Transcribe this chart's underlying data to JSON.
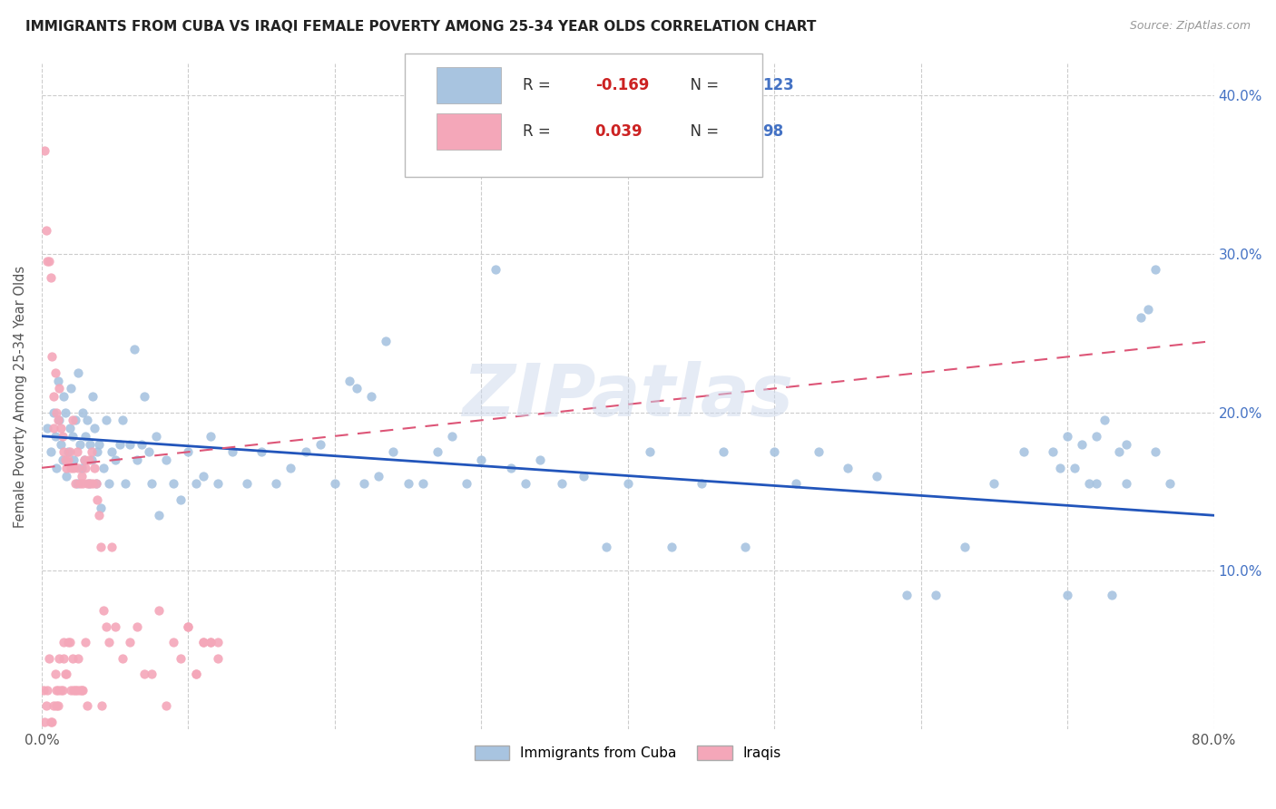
{
  "title": "IMMIGRANTS FROM CUBA VS IRAQI FEMALE POVERTY AMONG 25-34 YEAR OLDS CORRELATION CHART",
  "source": "Source: ZipAtlas.com",
  "ylabel": "Female Poverty Among 25-34 Year Olds",
  "xlim": [
    0.0,
    0.8
  ],
  "ylim": [
    0.0,
    0.42
  ],
  "xtick_positions": [
    0.0,
    0.1,
    0.2,
    0.3,
    0.4,
    0.5,
    0.6,
    0.7,
    0.8
  ],
  "xticklabels": [
    "0.0%",
    "",
    "",
    "",
    "",
    "",
    "",
    "",
    "80.0%"
  ],
  "ytick_positions": [
    0.1,
    0.2,
    0.3,
    0.4
  ],
  "yticklabels_right": [
    "10.0%",
    "20.0%",
    "30.0%",
    "40.0%"
  ],
  "cuba_color": "#a8c4e0",
  "iraq_color": "#f4a7b9",
  "cuba_line_color": "#2255bb",
  "iraq_line_color": "#dd5577",
  "R_cuba": -0.169,
  "N_cuba": 123,
  "R_iraq": 0.039,
  "N_iraq": 98,
  "watermark": "ZIPatlas",
  "background_color": "#ffffff",
  "cuba_trend": [
    0.185,
    0.135
  ],
  "iraq_trend": [
    0.165,
    0.245
  ],
  "cuba_scatter_x": [
    0.004,
    0.006,
    0.008,
    0.009,
    0.01,
    0.011,
    0.012,
    0.013,
    0.014,
    0.015,
    0.016,
    0.017,
    0.018,
    0.019,
    0.02,
    0.021,
    0.022,
    0.023,
    0.024,
    0.025,
    0.026,
    0.027,
    0.028,
    0.029,
    0.03,
    0.031,
    0.032,
    0.033,
    0.034,
    0.035,
    0.036,
    0.037,
    0.038,
    0.039,
    0.04,
    0.042,
    0.044,
    0.046,
    0.048,
    0.05,
    0.053,
    0.055,
    0.057,
    0.06,
    0.063,
    0.065,
    0.068,
    0.07,
    0.073,
    0.075,
    0.078,
    0.08,
    0.085,
    0.09,
    0.095,
    0.1,
    0.105,
    0.11,
    0.115,
    0.12,
    0.13,
    0.14,
    0.15,
    0.16,
    0.17,
    0.18,
    0.19,
    0.2,
    0.21,
    0.215,
    0.22,
    0.225,
    0.23,
    0.235,
    0.24,
    0.25,
    0.26,
    0.27,
    0.28,
    0.29,
    0.3,
    0.31,
    0.32,
    0.33,
    0.34,
    0.355,
    0.37,
    0.385,
    0.4,
    0.415,
    0.43,
    0.45,
    0.465,
    0.48,
    0.5,
    0.515,
    0.53,
    0.55,
    0.57,
    0.59,
    0.61,
    0.63,
    0.65,
    0.67,
    0.7,
    0.72,
    0.74,
    0.755,
    0.76,
    0.77,
    0.76,
    0.75,
    0.74,
    0.735,
    0.73,
    0.725,
    0.72,
    0.715,
    0.71,
    0.705,
    0.7,
    0.695,
    0.69
  ],
  "cuba_scatter_y": [
    0.19,
    0.175,
    0.2,
    0.185,
    0.165,
    0.22,
    0.195,
    0.18,
    0.17,
    0.21,
    0.2,
    0.16,
    0.175,
    0.19,
    0.215,
    0.185,
    0.17,
    0.195,
    0.155,
    0.225,
    0.18,
    0.165,
    0.2,
    0.17,
    0.185,
    0.195,
    0.155,
    0.18,
    0.17,
    0.21,
    0.19,
    0.155,
    0.175,
    0.18,
    0.14,
    0.165,
    0.195,
    0.155,
    0.175,
    0.17,
    0.18,
    0.195,
    0.155,
    0.18,
    0.24,
    0.17,
    0.18,
    0.21,
    0.175,
    0.155,
    0.185,
    0.135,
    0.17,
    0.155,
    0.145,
    0.175,
    0.155,
    0.16,
    0.185,
    0.155,
    0.175,
    0.155,
    0.175,
    0.155,
    0.165,
    0.175,
    0.18,
    0.155,
    0.22,
    0.215,
    0.155,
    0.21,
    0.16,
    0.245,
    0.175,
    0.155,
    0.155,
    0.175,
    0.185,
    0.155,
    0.17,
    0.29,
    0.165,
    0.155,
    0.17,
    0.155,
    0.16,
    0.115,
    0.155,
    0.175,
    0.115,
    0.155,
    0.175,
    0.115,
    0.175,
    0.155,
    0.175,
    0.165,
    0.16,
    0.085,
    0.085,
    0.115,
    0.155,
    0.175,
    0.185,
    0.155,
    0.18,
    0.265,
    0.175,
    0.155,
    0.29,
    0.26,
    0.155,
    0.175,
    0.085,
    0.195,
    0.185,
    0.155,
    0.18,
    0.165,
    0.085,
    0.165,
    0.175
  ],
  "iraq_scatter_x": [
    0.001,
    0.002,
    0.002,
    0.003,
    0.003,
    0.004,
    0.004,
    0.005,
    0.005,
    0.006,
    0.006,
    0.007,
    0.007,
    0.008,
    0.008,
    0.008,
    0.009,
    0.009,
    0.01,
    0.01,
    0.01,
    0.011,
    0.011,
    0.011,
    0.012,
    0.012,
    0.013,
    0.013,
    0.014,
    0.014,
    0.015,
    0.015,
    0.015,
    0.016,
    0.016,
    0.017,
    0.017,
    0.018,
    0.018,
    0.019,
    0.019,
    0.02,
    0.02,
    0.021,
    0.021,
    0.022,
    0.022,
    0.023,
    0.023,
    0.024,
    0.024,
    0.025,
    0.025,
    0.026,
    0.026,
    0.027,
    0.027,
    0.028,
    0.028,
    0.029,
    0.03,
    0.03,
    0.031,
    0.031,
    0.032,
    0.033,
    0.034,
    0.035,
    0.036,
    0.037,
    0.038,
    0.039,
    0.04,
    0.041,
    0.042,
    0.044,
    0.046,
    0.048,
    0.05,
    0.055,
    0.06,
    0.065,
    0.07,
    0.075,
    0.08,
    0.085,
    0.09,
    0.095,
    0.1,
    0.105,
    0.11,
    0.115,
    0.12,
    0.12,
    0.115,
    0.11,
    0.105,
    0.1
  ],
  "iraq_scatter_y": [
    0.025,
    0.365,
    0.005,
    0.315,
    0.015,
    0.295,
    0.025,
    0.295,
    0.045,
    0.285,
    0.005,
    0.235,
    0.005,
    0.21,
    0.015,
    0.19,
    0.225,
    0.035,
    0.2,
    0.025,
    0.015,
    0.195,
    0.015,
    0.025,
    0.215,
    0.045,
    0.19,
    0.025,
    0.185,
    0.025,
    0.175,
    0.055,
    0.045,
    0.17,
    0.035,
    0.165,
    0.035,
    0.17,
    0.055,
    0.175,
    0.055,
    0.165,
    0.025,
    0.195,
    0.045,
    0.165,
    0.025,
    0.155,
    0.025,
    0.175,
    0.025,
    0.165,
    0.045,
    0.155,
    0.025,
    0.16,
    0.025,
    0.155,
    0.025,
    0.17,
    0.165,
    0.055,
    0.155,
    0.015,
    0.17,
    0.155,
    0.175,
    0.155,
    0.165,
    0.155,
    0.145,
    0.135,
    0.115,
    0.015,
    0.075,
    0.065,
    0.055,
    0.115,
    0.065,
    0.045,
    0.055,
    0.065,
    0.035,
    0.035,
    0.075,
    0.015,
    0.055,
    0.045,
    0.065,
    0.035,
    0.055,
    0.055,
    0.045,
    0.055,
    0.055,
    0.055,
    0.035,
    0.065
  ]
}
